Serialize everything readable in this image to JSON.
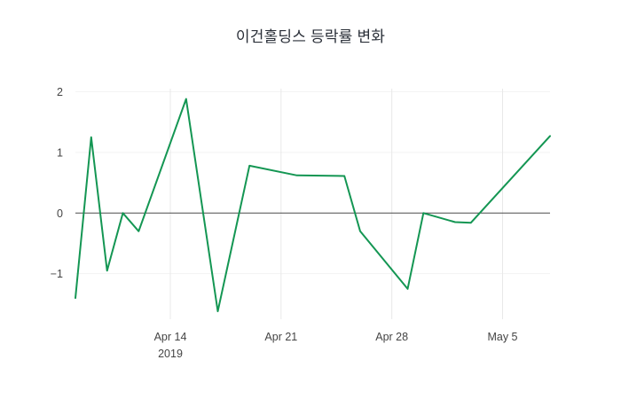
{
  "chart_data": {
    "type": "line",
    "title": "이건홀딩스 등락률 변화",
    "xlabel": "",
    "ylabel": "",
    "legend": "none",
    "grid": "faint-vertical-at-week-ticks",
    "zero_line": true,
    "xlim": [
      "2019-04-08",
      "2019-05-08"
    ],
    "ylim": [
      -1.75,
      2.05
    ],
    "x_ticks": [
      {
        "label": "Apr 14",
        "date": "2019-04-14"
      },
      {
        "label": "Apr 21",
        "date": "2019-04-21"
      },
      {
        "label": "Apr 28",
        "date": "2019-04-28"
      },
      {
        "label": "May 5",
        "date": "2019-05-05"
      }
    ],
    "x_axis_year_label": "2019",
    "y_ticks": [
      {
        "value": 2,
        "label": "2"
      },
      {
        "value": 1,
        "label": "1"
      },
      {
        "value": 0,
        "label": "0"
      },
      {
        "value": -1,
        "label": "−1"
      }
    ],
    "series": [
      {
        "name": "등락률",
        "color": "#149653",
        "points": [
          {
            "date": "2019-04-08",
            "value": -1.4
          },
          {
            "date": "2019-04-09",
            "value": 1.25
          },
          {
            "date": "2019-04-10",
            "value": -0.95
          },
          {
            "date": "2019-04-11",
            "value": 0.0
          },
          {
            "date": "2019-04-12",
            "value": -0.3
          },
          {
            "date": "2019-04-15",
            "value": 1.88
          },
          {
            "date": "2019-04-17",
            "value": -1.62
          },
          {
            "date": "2019-04-19",
            "value": 0.78
          },
          {
            "date": "2019-04-22",
            "value": 0.62
          },
          {
            "date": "2019-04-25",
            "value": 0.61
          },
          {
            "date": "2019-04-26",
            "value": -0.3
          },
          {
            "date": "2019-04-29",
            "value": -1.25
          },
          {
            "date": "2019-04-30",
            "value": 0.0
          },
          {
            "date": "2019-05-02",
            "value": -0.15
          },
          {
            "date": "2019-05-03",
            "value": -0.16
          },
          {
            "date": "2019-05-08",
            "value": 1.27
          }
        ]
      }
    ],
    "colors": {
      "line": "#149653",
      "zero_line": "#4a4a4a",
      "gridline": "#e8e8e8",
      "tick_label": "#444444",
      "background": "#ffffff"
    }
  }
}
